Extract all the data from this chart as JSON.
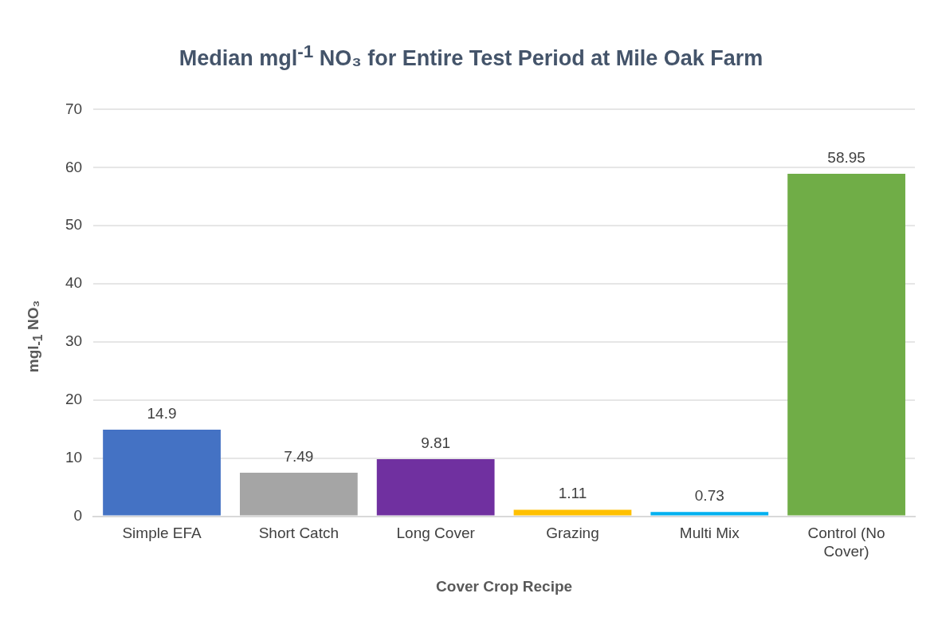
{
  "chart_data": {
    "type": "bar",
    "title": "Median mgl$^{-1}$ NO₃ for Entire Test Period at Mile Oak Farm",
    "xlabel": "Cover Crop Recipe",
    "ylabel": "mgl$_{-1}$ NO₃",
    "categories": [
      "Simple EFA",
      "Short Catch",
      "Long Cover",
      "Grazing",
      "Multi Mix",
      "Control (No Cover)"
    ],
    "values": [
      14.9,
      7.49,
      9.81,
      1.11,
      0.73,
      58.95
    ],
    "colors": [
      "#4472c4",
      "#a5a5a5",
      "#7030a0",
      "#ffc000",
      "#00b0f0",
      "#70ad47"
    ],
    "ylim": [
      0,
      70
    ],
    "yticks": [
      0,
      10,
      20,
      30,
      40,
      50,
      60,
      70
    ],
    "grid": "y",
    "data_labels": true,
    "legend": false
  }
}
